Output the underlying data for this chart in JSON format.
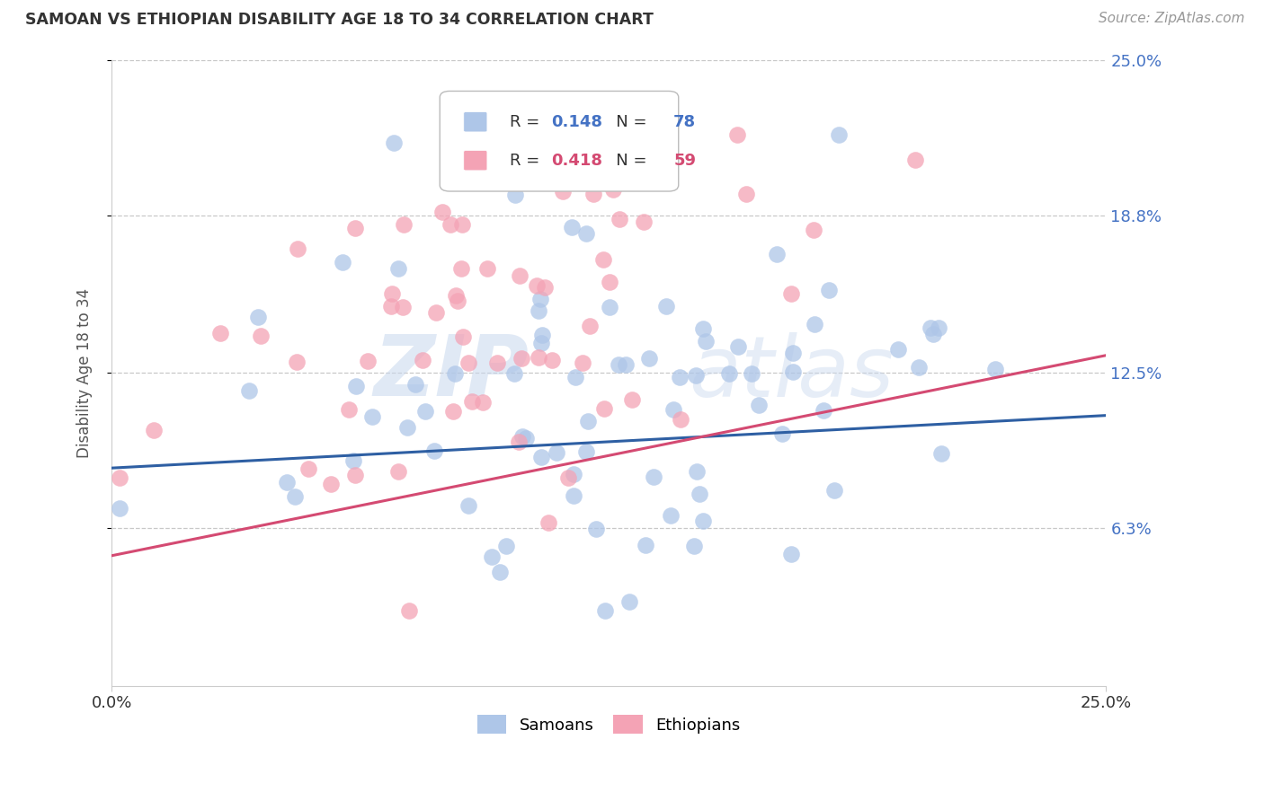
{
  "title": "SAMOAN VS ETHIOPIAN DISABILITY AGE 18 TO 34 CORRELATION CHART",
  "source": "Source: ZipAtlas.com",
  "ylabel": "Disability Age 18 to 34",
  "xlim": [
    0.0,
    0.25
  ],
  "ylim": [
    0.0,
    0.25
  ],
  "ytick_labels": [
    "6.3%",
    "12.5%",
    "18.8%",
    "25.0%"
  ],
  "ytick_values": [
    0.063,
    0.125,
    0.188,
    0.25
  ],
  "grid_color": "#c8c8c8",
  "background_color": "#ffffff",
  "samoan_color": "#aec6e8",
  "ethiopian_color": "#f4a3b5",
  "samoan_line_color": "#2e5fa3",
  "ethiopian_line_color": "#d44a72",
  "samoan_R": 0.148,
  "samoan_N": 78,
  "ethiopian_R": 0.418,
  "ethiopian_N": 59,
  "watermark_zip": "ZIP",
  "watermark_atlas": "atlas",
  "legend_samoan_label": "Samoans",
  "legend_ethiopian_label": "Ethiopians",
  "title_color": "#333333",
  "source_color": "#999999",
  "ytick_color": "#4472c4",
  "xtick_color": "#333333"
}
